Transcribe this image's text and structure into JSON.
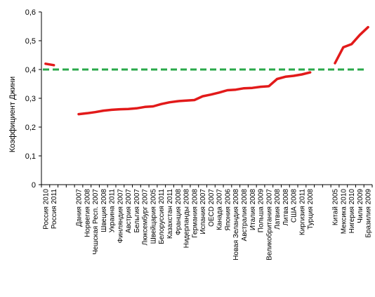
{
  "chart_data": {
    "type": "line",
    "title": "",
    "xlabel": "",
    "ylabel": "Коэффициент Джини",
    "ylim": [
      0,
      0.6
    ],
    "yticks": [
      "0",
      "0,1",
      "0,2",
      "0,3",
      "0,4",
      "0,5",
      "0,6"
    ],
    "grid": false,
    "legend": "none",
    "colors": {
      "series": "#e21a1a",
      "reference": "#2aa84a",
      "axis": "#000000"
    },
    "reference_line": {
      "y": 0.4,
      "style": "dashed"
    },
    "categories": [
      "Россия 2010",
      "Россия 2011",
      "",
      "",
      "Дания 2007",
      "Норвегия 2008",
      "Чешская Респ. 2007",
      "Швеция 2008",
      "Украина 2011",
      "Финляндия 2007",
      "Австрия 2007",
      "Бельгия 2007",
      "Люксембург 2007",
      "Швейцария 2005",
      "Белоруссия 2011",
      "Казахстан 2011",
      "Франция 2008",
      "Нидерланды 2008",
      "Германия 2008",
      "Испания 2007",
      "ОЕСD 2007",
      "Канада 2007",
      "Япония 2006",
      "Новая Зеландия 2008",
      "Австралия 2008",
      "Италия 2008",
      "Польша 2009",
      "Великобритания 2007",
      "Латвия 2008",
      "Литва 2008",
      "США 2008",
      "Киргизия 2011",
      "Турция 2008",
      "",
      "",
      "Китай 2005",
      "Мексика 2010",
      "Нигерия 2010",
      "Чили 2009",
      "Бразилия 2009"
    ],
    "series": [
      {
        "segments": [
          {
            "start_index": 0,
            "values": [
              0.42,
              0.415
            ]
          },
          {
            "start_index": 4,
            "values": [
              0.245,
              0.248,
              0.252,
              0.257,
              0.26,
              0.262,
              0.263,
              0.265,
              0.27,
              0.272,
              0.28,
              0.286,
              0.29,
              0.292,
              0.294,
              0.307,
              0.313,
              0.32,
              0.328,
              0.33,
              0.335,
              0.336,
              0.34,
              0.342,
              0.367,
              0.375,
              0.378,
              0.383,
              0.39
            ]
          },
          {
            "start_index": 35,
            "values": [
              0.422,
              0.477,
              0.488,
              0.52,
              0.547
            ]
          }
        ]
      }
    ]
  }
}
